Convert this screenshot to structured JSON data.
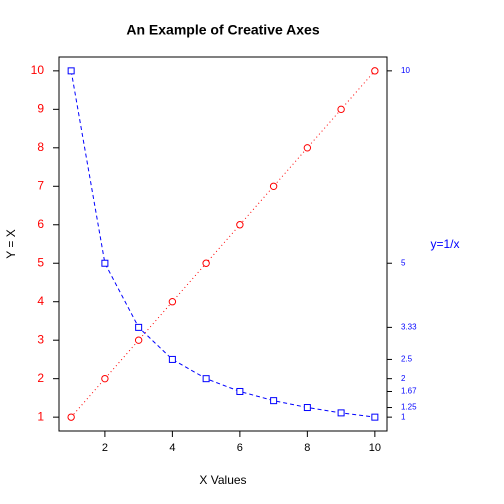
{
  "chart_data": {
    "type": "line",
    "title": "An Example of Creative Axes",
    "x_label": "X Values",
    "y_label": "Y = X",
    "y2_label": "y=1/x",
    "x": [
      1,
      2,
      3,
      4,
      5,
      6,
      7,
      8,
      9,
      10
    ],
    "series": [
      {
        "color": "#ff0000",
        "marker": "circle",
        "linestyle": "dotted",
        "values": [
          1,
          2,
          3,
          4,
          5,
          6,
          7,
          8,
          9,
          10
        ]
      },
      {
        "color": "#0000ff",
        "marker": "square",
        "linestyle": "dashed",
        "axis": "y2",
        "values": [
          10,
          5,
          3.333,
          2.5,
          2,
          1.667,
          1.429,
          1.25,
          1.111,
          1
        ]
      }
    ],
    "xlim": [
      0.64,
      10.36
    ],
    "ylim": [
      0.64,
      10.36
    ],
    "y2lim": [
      0.64,
      10.36
    ],
    "xticks": [
      2,
      4,
      6,
      8,
      10
    ],
    "yticks": [
      1,
      2,
      3,
      4,
      5,
      6,
      7,
      8,
      9,
      10
    ],
    "y2ticks": [
      10,
      5,
      {
        "value": 3.333,
        "label": "3.33"
      },
      2.5,
      2,
      {
        "value": 1.667,
        "label": "1.67"
      },
      1.25,
      1
    ],
    "ytick_color": "#ff0000",
    "y2tick_color": "#0000ff",
    "y2_label_color": "#0000ff"
  }
}
